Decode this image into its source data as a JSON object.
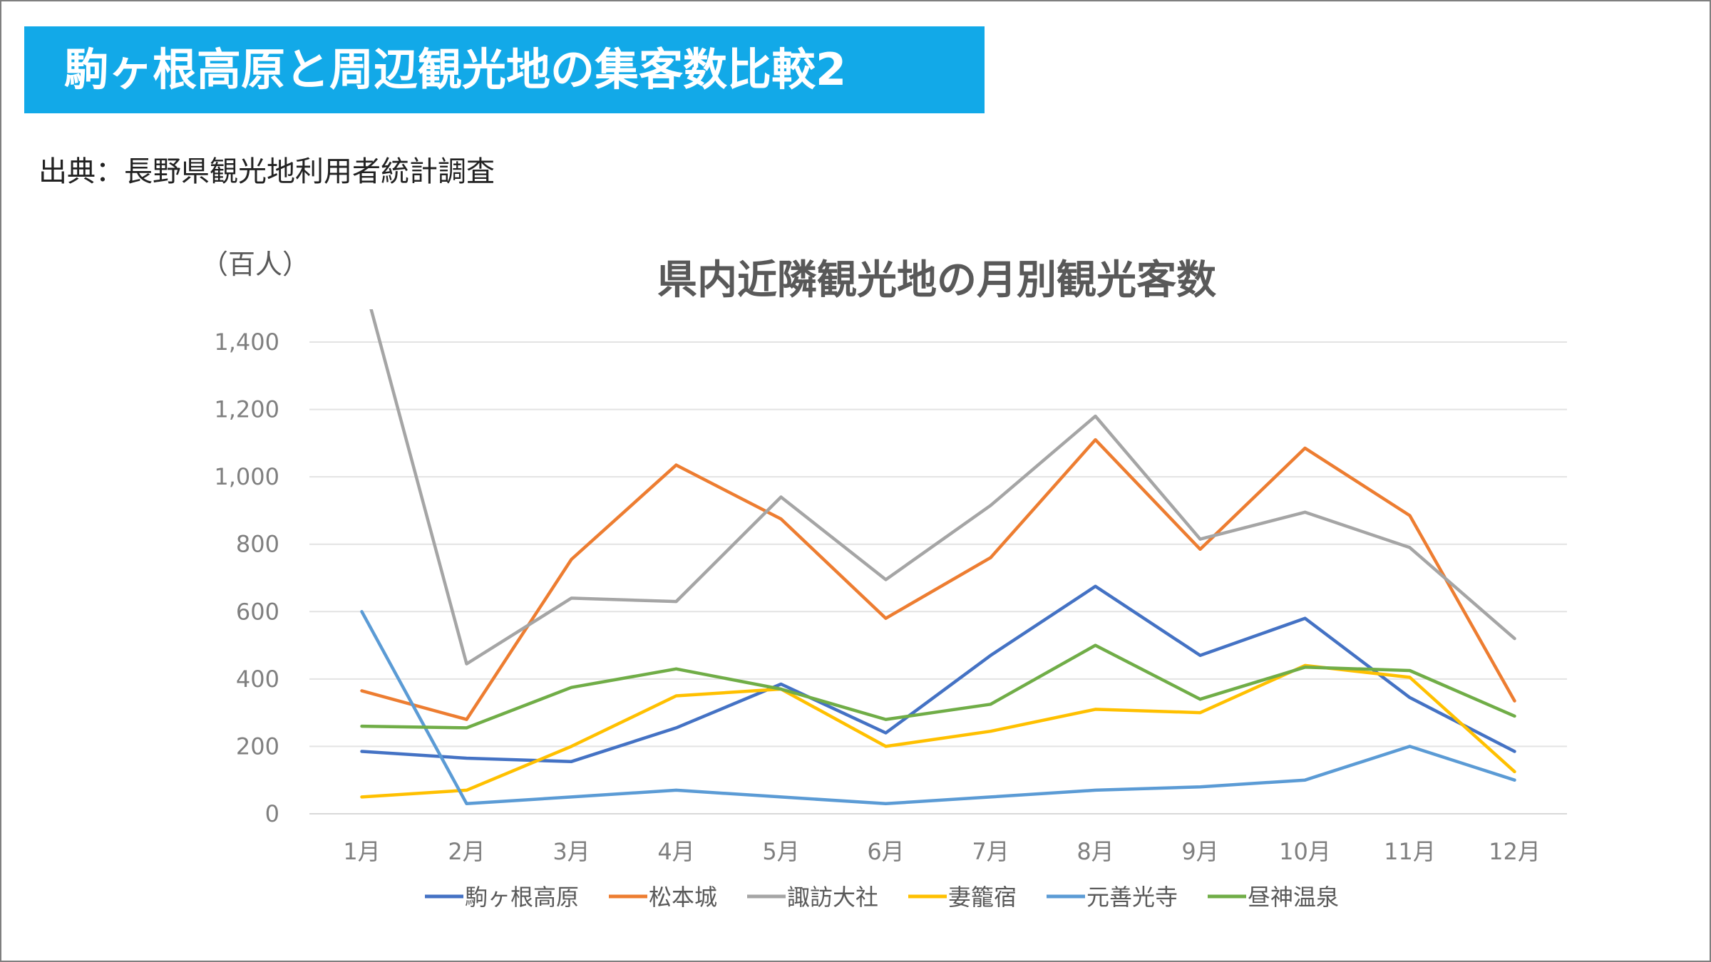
{
  "slide": {
    "title": "駒ヶ根高原と周辺観光地の集客数比較2",
    "source": "出典：長野県観光地利用者統計調査"
  },
  "chart_data": {
    "type": "line",
    "title": "県内近隣観光地の月別観光客数",
    "unit": "（百人）",
    "categories": [
      "1月",
      "2月",
      "3月",
      "4月",
      "5月",
      "6月",
      "7月",
      "8月",
      "9月",
      "10月",
      "11月",
      "12月"
    ],
    "ylim": [
      0,
      1400
    ],
    "yticks": [
      "0",
      "200",
      "400",
      "600",
      "800",
      "1,000",
      "1,200",
      "1,400"
    ],
    "grid": true,
    "legend_position": "bottom",
    "series": [
      {
        "name": "駒ヶ根高原",
        "color": "#4472c4",
        "values": [
          185,
          165,
          155,
          255,
          385,
          240,
          470,
          675,
          470,
          580,
          345,
          185
        ]
      },
      {
        "name": "松本城",
        "color": "#ed7d31",
        "values": [
          365,
          280,
          755,
          1035,
          875,
          580,
          760,
          1110,
          785,
          1085,
          885,
          335
        ]
      },
      {
        "name": "諏訪大社",
        "color": "#a5a5a5",
        "values": [
          1600,
          445,
          640,
          630,
          940,
          695,
          915,
          1180,
          815,
          895,
          790,
          520
        ]
      },
      {
        "name": "妻籠宿",
        "color": "#ffc000",
        "values": [
          50,
          70,
          200,
          350,
          370,
          200,
          245,
          310,
          300,
          440,
          405,
          125
        ]
      },
      {
        "name": "元善光寺",
        "color": "#5b9bd5",
        "values": [
          600,
          30,
          50,
          70,
          50,
          30,
          50,
          70,
          80,
          100,
          200,
          100
        ]
      },
      {
        "name": "昼神温泉",
        "color": "#70ad47",
        "values": [
          260,
          255,
          375,
          430,
          370,
          280,
          325,
          500,
          340,
          435,
          425,
          290
        ]
      }
    ]
  }
}
